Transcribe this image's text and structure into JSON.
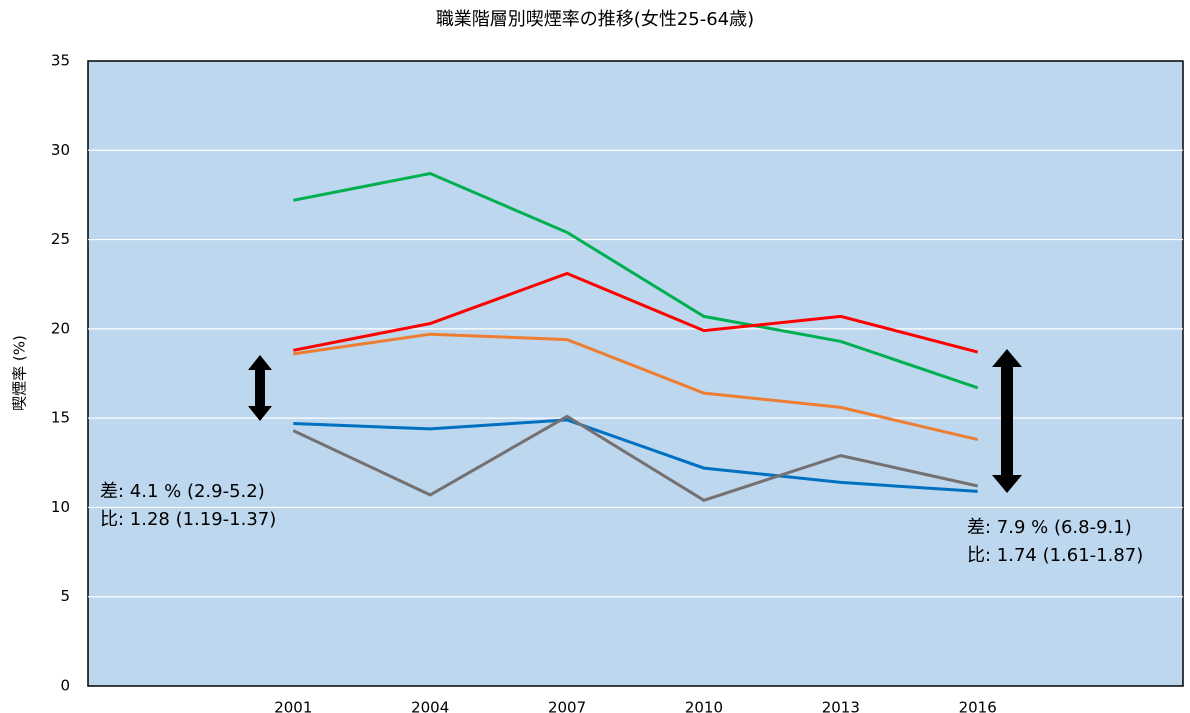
{
  "chart_data": {
    "type": "line",
    "title": "職業階層別喫煙率の推移(女性25-64歳)",
    "y_label": "喫煙率 (%)",
    "x": [
      2001,
      2004,
      2007,
      2010,
      2013,
      2016
    ],
    "xlim": [
      1996.5,
      2020.5
    ],
    "xticks": [
      2001,
      2004,
      2007,
      2010,
      2013,
      2016
    ],
    "ylim": [
      0,
      35
    ],
    "yticks": [
      0,
      5,
      10,
      15,
      20,
      25,
      30,
      35
    ],
    "grid": true,
    "series": [
      {
        "color": "#00b050",
        "values": [
          27.2,
          28.7,
          25.4,
          20.7,
          19.3,
          16.7
        ]
      },
      {
        "color": "#ff0000",
        "values": [
          18.8,
          20.3,
          23.1,
          19.9,
          20.7,
          18.7
        ]
      },
      {
        "color": "#ed7d31",
        "values": [
          18.6,
          19.7,
          19.4,
          16.4,
          15.6,
          13.8
        ]
      },
      {
        "color": "#0070c0",
        "values": [
          14.7,
          14.4,
          14.9,
          12.2,
          11.4,
          10.9
        ]
      },
      {
        "color": "#767171",
        "values": [
          14.3,
          10.7,
          15.1,
          10.4,
          12.9,
          11.2
        ]
      }
    ],
    "annotations": [
      "差: 4.1 % (2.9-5.2)",
      "比: 1.28 (1.19-1.37)",
      "差: 7.9 % (6.8-9.1)",
      "比: 1.74 (1.61-1.87)"
    ]
  }
}
